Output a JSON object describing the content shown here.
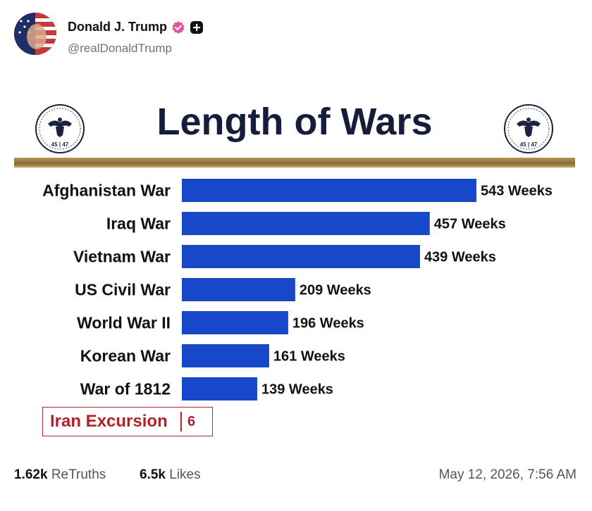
{
  "post": {
    "author": {
      "display_name": "Donald J. Trump",
      "handle": "@realDonaldTrump",
      "verified_badge_color": "#e0559d"
    },
    "image": {
      "seal_text": "45 | 47"
    },
    "stats": {
      "retruths_count": "1.62k",
      "retruths_label": "ReTruths",
      "likes_count": "6.5k",
      "likes_label": "Likes"
    },
    "timestamp": "May 12, 2026, 7:56 AM"
  },
  "chart_data": {
    "type": "bar",
    "orientation": "horizontal",
    "title": "Length of Wars",
    "categories": [
      "Afghanistan War",
      "Iraq War",
      "Vietnam War",
      "US Civil War",
      "World War II",
      "Korean War",
      "War of 1812"
    ],
    "values": [
      543,
      457,
      439,
      209,
      196,
      161,
      139
    ],
    "value_labels": [
      "543 Weeks",
      "457 Weeks",
      "439 Weeks",
      "209 Weeks",
      "196 Weeks",
      "161 Weeks",
      "139 Weeks"
    ],
    "bar_color": "#1748c9",
    "highlight": {
      "label": "Iran Excursion",
      "value": "6",
      "color": "#b3202a"
    },
    "grid": false
  }
}
